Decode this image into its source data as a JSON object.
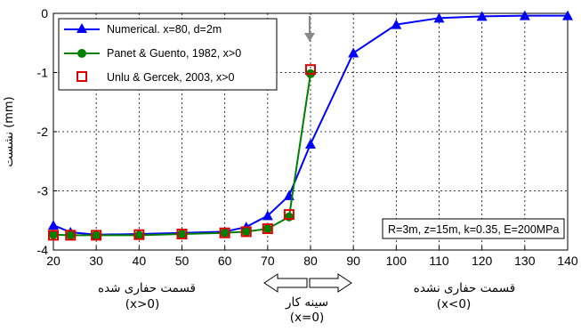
{
  "chart_data": {
    "type": "line",
    "title": "",
    "xlabel": "",
    "ylabel": "نشست (mm)",
    "xlim": [
      20,
      140
    ],
    "ylim": [
      -4,
      0
    ],
    "x_ticks": [
      20,
      30,
      40,
      50,
      60,
      70,
      80,
      90,
      100,
      110,
      120,
      130,
      140
    ],
    "y_ticks": [
      0,
      -1,
      -2,
      -3,
      -4
    ],
    "grid": true,
    "legend_position": "top-left",
    "series": [
      {
        "name": "Numerical. x=80, d=2m",
        "color": "#0000ff",
        "marker": "triangle",
        "x": [
          20,
          24,
          30,
          40,
          50,
          60,
          65,
          70,
          75,
          80,
          90,
          100,
          110,
          120,
          130,
          140
        ],
        "y": [
          -3.58,
          -3.7,
          -3.74,
          -3.73,
          -3.71,
          -3.69,
          -3.61,
          -3.42,
          -3.08,
          -2.21,
          -0.67,
          -0.19,
          -0.08,
          -0.05,
          -0.04,
          -0.04
        ]
      },
      {
        "name": "Panet & Guento, 1982, x>0",
        "color": "#008000",
        "marker": "circle",
        "x": [
          20,
          24,
          30,
          40,
          50,
          60,
          65,
          70,
          75,
          80
        ],
        "y": [
          -3.74,
          -3.75,
          -3.75,
          -3.75,
          -3.73,
          -3.71,
          -3.69,
          -3.64,
          -3.44,
          -1.02
        ]
      },
      {
        "name": "Unlu & Gercek, 2003, x>0",
        "color": "#e00000",
        "marker": "square-open",
        "x": [
          20,
          24,
          30,
          40,
          50,
          60,
          65,
          70,
          75,
          80
        ],
        "y": [
          -3.75,
          -3.75,
          -3.75,
          -3.74,
          -3.73,
          -3.71,
          -3.69,
          -3.64,
          -3.4,
          -0.95
        ]
      }
    ],
    "parameters_box": "R=3m, z=15m, k=0.35, E=200MPa",
    "annotations": {
      "excavated_label": "قسمت حفاری شده",
      "excavated_condition": "(x>0)",
      "face_label": "سینه کار",
      "face_condition": "(x=0)",
      "unexcavated_label": "قسمت حفاری نشده",
      "unexcavated_condition": "(x<0)"
    }
  }
}
